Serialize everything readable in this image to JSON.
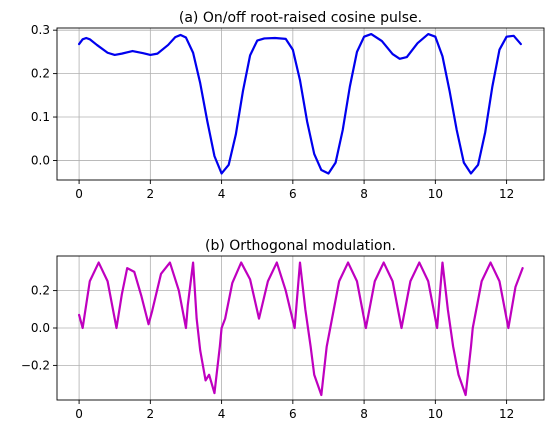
{
  "chart_data": [
    {
      "type": "line",
      "title": "(a) On/off root-raised cosine pulse.",
      "xlabel": "",
      "ylabel": "",
      "xlim": [
        -0.62,
        13.05
      ],
      "ylim": [
        -0.045,
        0.305
      ],
      "xticks": [
        0,
        2,
        4,
        6,
        8,
        10,
        12
      ],
      "yticks": [
        0.0,
        0.1,
        0.2,
        0.3
      ],
      "ytick_labels": [
        "0.0",
        "0.1",
        "0.2",
        "0.3"
      ],
      "grid": true,
      "color": "#0000ee",
      "series": [
        {
          "x": [
            0.0,
            0.1,
            0.2,
            0.3,
            0.5,
            0.8,
            1.0,
            1.2,
            1.5,
            1.8,
            2.0,
            2.2,
            2.5,
            2.7,
            2.85,
            3.0,
            3.2,
            3.4,
            3.6,
            3.8,
            4.0,
            4.2,
            4.4,
            4.6,
            4.8,
            5.0,
            5.2,
            5.5,
            5.8,
            6.0,
            6.2,
            6.4,
            6.6,
            6.8,
            7.0,
            7.2,
            7.4,
            7.6,
            7.8,
            8.0,
            8.2,
            8.5,
            8.8,
            9.0,
            9.2,
            9.5,
            9.8,
            10.0,
            10.2,
            10.4,
            10.6,
            10.8,
            11.0,
            11.2,
            11.4,
            11.6,
            11.8,
            12.0,
            12.2,
            12.4
          ],
          "y": [
            0.268,
            0.279,
            0.282,
            0.279,
            0.266,
            0.248,
            0.243,
            0.246,
            0.252,
            0.247,
            0.243,
            0.246,
            0.266,
            0.284,
            0.289,
            0.283,
            0.248,
            0.178,
            0.09,
            0.01,
            -0.03,
            -0.01,
            0.06,
            0.16,
            0.242,
            0.276,
            0.281,
            0.282,
            0.28,
            0.255,
            0.185,
            0.09,
            0.015,
            -0.022,
            -0.03,
            -0.005,
            0.07,
            0.17,
            0.25,
            0.285,
            0.291,
            0.275,
            0.245,
            0.234,
            0.238,
            0.27,
            0.291,
            0.285,
            0.24,
            0.16,
            0.07,
            -0.005,
            -0.03,
            -0.01,
            0.065,
            0.17,
            0.255,
            0.285,
            0.287,
            0.268
          ]
        }
      ]
    },
    {
      "type": "line",
      "title": "(b) Orthogonal modulation.",
      "xlabel": "",
      "ylabel": "",
      "xlim": [
        -0.62,
        13.05
      ],
      "ylim": [
        -0.385,
        0.385
      ],
      "xticks": [
        0,
        2,
        4,
        6,
        8,
        10,
        12
      ],
      "yticks": [
        -0.2,
        0.0,
        0.2
      ],
      "ytick_labels": [
        "−0.2",
        "0.0",
        "0.2"
      ],
      "grid": true,
      "color": "#bf00bf",
      "series": [
        {
          "x": [
            0.0,
            0.1,
            0.3,
            0.55,
            0.8,
            1.0,
            1.05,
            1.2,
            1.35,
            1.55,
            1.75,
            1.95,
            2.05,
            2.3,
            2.55,
            2.8,
            3.0,
            3.05,
            3.2,
            3.3,
            3.4,
            3.55,
            3.65,
            3.8,
            3.95,
            4.0,
            4.1,
            4.3,
            4.55,
            4.8,
            5.05,
            5.3,
            5.55,
            5.8,
            6.05,
            6.2,
            6.35,
            6.5,
            6.6,
            6.8,
            6.95,
            7.05,
            7.3,
            7.55,
            7.8,
            8.05,
            8.3,
            8.55,
            8.8,
            9.05,
            9.3,
            9.55,
            9.8,
            10.05,
            10.2,
            10.35,
            10.5,
            10.65,
            10.85,
            11.0,
            11.05,
            11.3,
            11.55,
            11.8,
            12.05,
            12.25,
            12.45
          ],
          "y": [
            0.07,
            0.0,
            0.25,
            0.35,
            0.25,
            0.05,
            0.0,
            0.18,
            0.32,
            0.3,
            0.17,
            0.02,
            0.09,
            0.29,
            0.35,
            0.2,
            0.0,
            0.12,
            0.35,
            0.05,
            -0.12,
            -0.28,
            -0.25,
            -0.348,
            -0.1,
            0.0,
            0.05,
            0.24,
            0.35,
            0.26,
            0.05,
            0.25,
            0.35,
            0.2,
            0.0,
            0.35,
            0.1,
            -0.1,
            -0.25,
            -0.358,
            -0.1,
            0.0,
            0.25,
            0.35,
            0.25,
            0.0,
            0.25,
            0.35,
            0.25,
            0.0,
            0.25,
            0.35,
            0.25,
            0.0,
            0.35,
            0.1,
            -0.1,
            -0.25,
            -0.358,
            -0.1,
            0.0,
            0.25,
            0.35,
            0.25,
            0.0,
            0.22,
            0.32
          ]
        }
      ]
    }
  ]
}
